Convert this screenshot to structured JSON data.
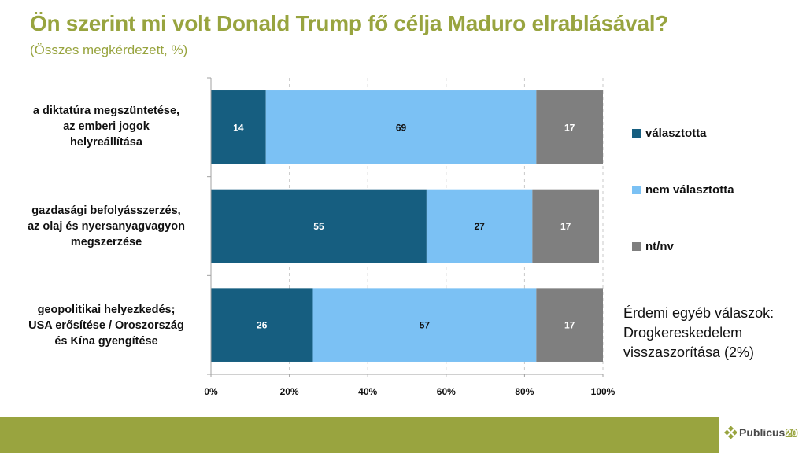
{
  "header": {
    "title": "Ön szerint mi volt Donald Trump fő célja Maduro elrablásával?",
    "subtitle": "(Összes megkérdezett, %)"
  },
  "colors": {
    "title": "#98a43f",
    "footer": "#99a43f",
    "valasztotta": "#165e80",
    "nem_valasztotta": "#7bc1f4",
    "ntnv": "#7f7f7f"
  },
  "chart_data": {
    "type": "bar",
    "orientation": "horizontal",
    "stacked": true,
    "title": "Ön szerint mi volt Donald Trump fő célja Maduro elrablásával?",
    "subtitle": "(Összes megkérdezett, %)",
    "categories": [
      [
        "a diktatúra megszüntetése,",
        "az emberi jogok",
        "helyreállítása"
      ],
      [
        "gazdasági befolyásszerzés,",
        "az olaj és nyersanyagvagyon",
        "megszerzése"
      ],
      [
        "geopolitikai helyezkedés;",
        "USA erősítése / Oroszország",
        "és Kína gyengítése"
      ]
    ],
    "series": [
      {
        "name": "választotta",
        "color": "#165e80",
        "label_color": "#ffffff",
        "values": [
          14,
          55,
          26
        ]
      },
      {
        "name": "nem választotta",
        "color": "#7bc1f4",
        "label_color": "#111111",
        "values": [
          69,
          27,
          57
        ]
      },
      {
        "name": "nt/nv",
        "color": "#7f7f7f",
        "label_color": "#ffffff",
        "values": [
          17,
          17,
          17
        ]
      }
    ],
    "xlim": [
      0,
      100
    ],
    "xticks": [
      "0%",
      "20%",
      "40%",
      "60%",
      "80%",
      "100%"
    ],
    "xtick_values": [
      0,
      20,
      40,
      60,
      80,
      100
    ],
    "grid": "vertical dashed",
    "legend_position": "right",
    "xlabel": "",
    "ylabel": ""
  },
  "legend": [
    {
      "label": "választotta"
    },
    {
      "label": "nem választotta"
    },
    {
      "label": "nt/nv"
    }
  ],
  "note": {
    "lines": [
      "Érdemi egyéb válaszok:",
      "Drogkereskedelem",
      "visszaszorítása (2%)"
    ]
  },
  "footer": {
    "logo_text": "Publicus",
    "logo_number": "20"
  }
}
